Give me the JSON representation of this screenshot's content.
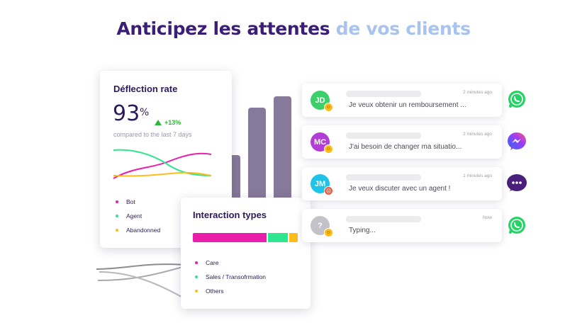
{
  "headline": {
    "part1": "Anticipez les attentes",
    "part2": "de vos clients"
  },
  "deflection": {
    "title": "Déflection rate",
    "value": "93",
    "unit": "%",
    "trend": "+13%",
    "compared": "compared to the last 7 days",
    "legend": [
      {
        "label": "Bot",
        "color": "#e91eaa"
      },
      {
        "label": "Agent",
        "color": "#2ee68f"
      },
      {
        "label": "Abandonned",
        "color": "#fbbd1c"
      }
    ]
  },
  "interaction": {
    "title": "Interaction types",
    "legend": [
      {
        "label": "Care",
        "color": "#e91eaa",
        "share": 0.7
      },
      {
        "label": "Sales / Transofrmation",
        "color": "#2ee68f",
        "share": 0.2
      },
      {
        "label": "Others",
        "color": "#fbbd1c",
        "share": 0.1
      }
    ]
  },
  "conversations": [
    {
      "initials": "JD",
      "avatar_color": "#3ccf6a",
      "emoji": "happy-emoji-icon",
      "emoji_color": "#fbbd1c",
      "time": "2 minutes ago",
      "message": "Je veux obtenir un remboursement ...",
      "channel": "whatsapp-icon"
    },
    {
      "initials": "MC",
      "avatar_color": "#b23ed7",
      "emoji": "happy-emoji-icon",
      "emoji_color": "#fbbd1c",
      "time": "2 minutes ago",
      "message": "J'ai besoin de changer ma situatio...",
      "channel": "messenger-icon"
    },
    {
      "initials": "JM",
      "avatar_color": "#1fc3e8",
      "emoji": "angry-emoji-icon",
      "emoji_color": "#f2573b",
      "time": "1 minutes ago",
      "message": "Je veux discuter avec un agent !",
      "channel": "sms-chat-icon"
    },
    {
      "initials": "?",
      "avatar_color": "#c2c2c8",
      "emoji": "happy-emoji-icon",
      "emoji_color": "#fbbd1c",
      "time": "Now",
      "message": "Typing...",
      "channel": "whatsapp-icon"
    }
  ]
}
